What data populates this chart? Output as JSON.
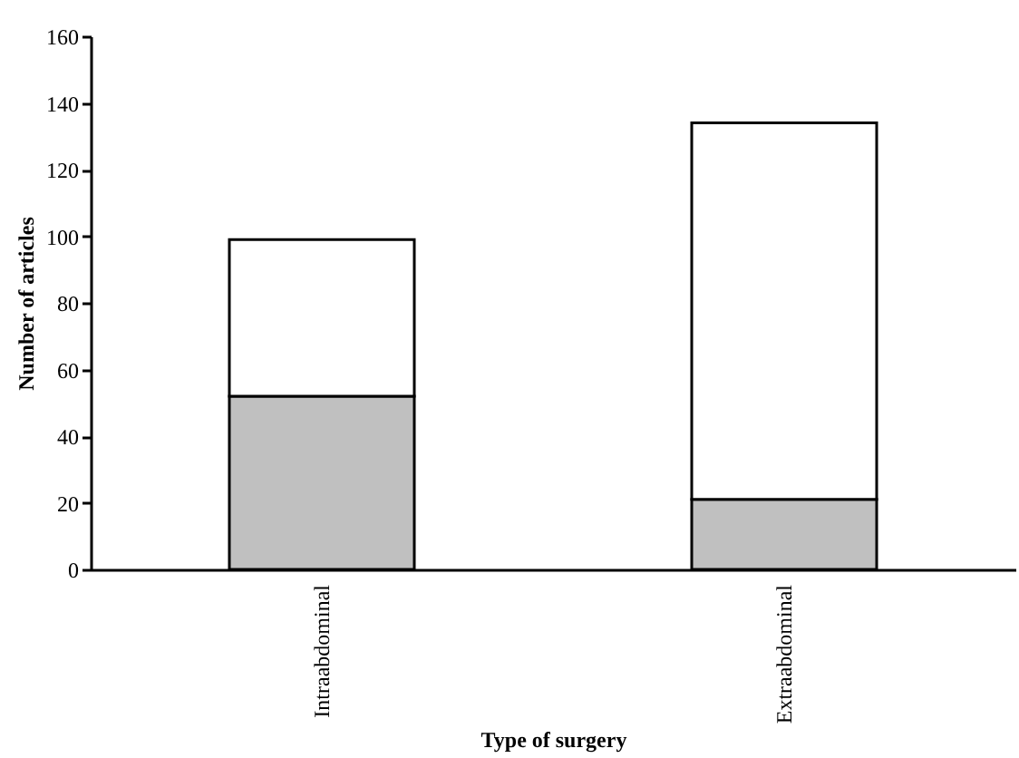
{
  "chart_data": {
    "type": "bar",
    "stacked": true,
    "xlabel": "Type of surgery",
    "ylabel": "Number of articles",
    "categories": [
      "Intraabdominal",
      "Extraabdominal"
    ],
    "series": [
      {
        "color": "#c0c0c0",
        "values": [
          52,
          21
        ]
      },
      {
        "color": "#ffffff",
        "values": [
          47,
          113
        ]
      }
    ],
    "ylim": [
      0,
      160
    ],
    "yticks": [
      0,
      20,
      40,
      60,
      80,
      100,
      120,
      140,
      160
    ],
    "grid": false,
    "legend": false
  }
}
